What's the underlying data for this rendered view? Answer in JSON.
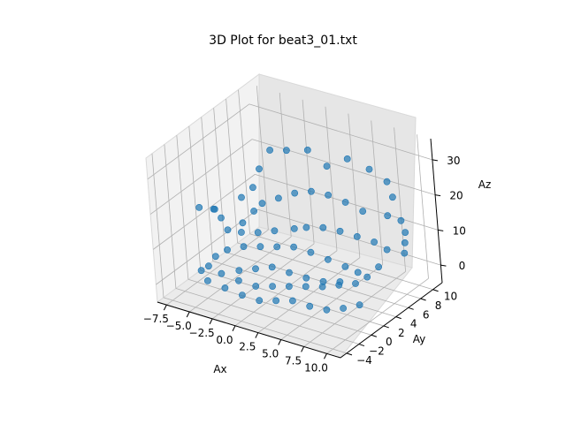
{
  "chart_data": {
    "type": "scatter",
    "projection": "3d",
    "title": "3D Plot for beat3_01.txt",
    "xlabel": "Ax",
    "ylabel": "Ay",
    "zlabel": "Az",
    "xlim": [
      -8.5,
      11.5
    ],
    "ylim": [
      -5,
      11.5
    ],
    "zlim": [
      -5,
      36
    ],
    "xticks": [
      -7.5,
      -5.0,
      -2.5,
      0.0,
      2.5,
      5.0,
      7.5,
      10.0
    ],
    "xtick_labels": [
      "−7.5",
      "−5.0",
      "−2.5",
      "0.0",
      "2.5",
      "5.0",
      "7.5",
      "10.0"
    ],
    "yticks": [
      -4,
      -2,
      0,
      2,
      4,
      6,
      8,
      10
    ],
    "ytick_labels": [
      "−4",
      "−2",
      "0",
      "2",
      "4",
      "6",
      "8",
      "10"
    ],
    "zticks": [
      0,
      10,
      20,
      30
    ],
    "ztick_labels": [
      "0",
      "10",
      "20",
      "30"
    ],
    "grid": true,
    "marker_color": "#1f77b4",
    "series": [
      {
        "points": [
          [
            4.0,
            5.5,
            30.0
          ],
          [
            2.0,
            5.5,
            33.0
          ],
          [
            0.0,
            5.0,
            32.0
          ],
          [
            -1.5,
            4.5,
            31.5
          ],
          [
            6.0,
            6.0,
            33.0
          ],
          [
            8.0,
            6.5,
            31.0
          ],
          [
            9.5,
            7.0,
            28.0
          ],
          [
            10.0,
            7.0,
            24.0
          ],
          [
            10.0,
            6.0,
            20.0
          ],
          [
            -2.5,
            4.0,
            26.0
          ],
          [
            -3.0,
            3.5,
            21.0
          ],
          [
            -4.0,
            3.0,
            18.0
          ],
          [
            -6.0,
            1.5,
            15.0
          ],
          [
            -7.0,
            0.5,
            16.0
          ],
          [
            -6.5,
            2.0,
            14.0
          ],
          [
            -5.0,
            1.0,
            14.0
          ],
          [
            -4.0,
            0.5,
            12.0
          ],
          [
            -2.5,
            0.5,
            12.5
          ],
          [
            -1.0,
            1.0,
            13.0
          ],
          [
            0.5,
            1.5,
            14.0
          ],
          [
            2.0,
            2.5,
            14.5
          ],
          [
            3.0,
            3.0,
            15.0
          ],
          [
            4.5,
            3.5,
            15.5
          ],
          [
            6.0,
            4.0,
            15.0
          ],
          [
            7.5,
            4.5,
            14.0
          ],
          [
            9.0,
            5.0,
            13.0
          ],
          [
            10.0,
            5.5,
            11.0
          ],
          [
            10.0,
            4.0,
            8.0
          ],
          [
            9.0,
            3.5,
            5.0
          ],
          [
            8.0,
            3.0,
            3.0
          ],
          [
            6.5,
            2.5,
            2.0
          ],
          [
            5.0,
            2.0,
            1.0
          ],
          [
            3.5,
            1.5,
            0.5
          ],
          [
            2.0,
            1.0,
            0.0
          ],
          [
            0.5,
            0.5,
            -0.5
          ],
          [
            -1.0,
            0.0,
            -1.0
          ],
          [
            -2.5,
            -0.5,
            0.0
          ],
          [
            -4.0,
            -1.0,
            1.5
          ],
          [
            -5.0,
            -1.5,
            3.5
          ],
          [
            -4.5,
            -1.0,
            6.0
          ],
          [
            -3.5,
            -0.5,
            8.0
          ],
          [
            -2.0,
            0.0,
            9.5
          ],
          [
            -0.5,
            0.5,
            10.0
          ],
          [
            1.0,
            1.0,
            10.5
          ],
          [
            2.5,
            1.5,
            11.0
          ],
          [
            4.0,
            2.0,
            10.0
          ],
          [
            5.5,
            2.5,
            8.5
          ],
          [
            7.0,
            3.0,
            7.0
          ],
          [
            8.0,
            3.5,
            5.5
          ],
          [
            3.0,
            0.0,
            -2.0
          ],
          [
            4.5,
            0.5,
            -3.0
          ],
          [
            6.0,
            1.0,
            -3.5
          ],
          [
            7.5,
            1.5,
            -2.5
          ],
          [
            9.0,
            2.0,
            -1.0
          ],
          [
            1.5,
            -0.5,
            -2.5
          ],
          [
            0.0,
            -1.0,
            -3.0
          ],
          [
            -1.5,
            -1.5,
            -2.0
          ],
          [
            -3.0,
            -2.0,
            -0.5
          ],
          [
            -4.5,
            -2.5,
            1.0
          ],
          [
            -5.5,
            -2.0,
            2.5
          ],
          [
            -1.0,
            2.0,
            20.0
          ],
          [
            0.5,
            2.5,
            22.0
          ],
          [
            2.0,
            3.0,
            24.0
          ],
          [
            3.5,
            3.5,
            25.0
          ],
          [
            5.0,
            4.0,
            24.5
          ],
          [
            6.5,
            4.5,
            23.0
          ],
          [
            8.0,
            5.0,
            21.0
          ],
          [
            -2.0,
            2.0,
            17.0
          ],
          [
            -3.0,
            1.5,
            13.5
          ],
          [
            1.0,
            0.0,
            6.0
          ],
          [
            2.5,
            0.5,
            5.0
          ],
          [
            4.0,
            1.0,
            4.0
          ],
          [
            5.5,
            1.5,
            3.5
          ],
          [
            7.0,
            2.0,
            4.0
          ],
          [
            -0.5,
            -0.5,
            5.0
          ],
          [
            -2.0,
            -1.0,
            4.0
          ],
          [
            10.0,
            8.0,
            16.0
          ],
          [
            10.0,
            8.5,
            12.0
          ],
          [
            9.5,
            9.0,
            8.0
          ],
          [
            9.0,
            9.5,
            4.0
          ]
        ]
      }
    ]
  }
}
